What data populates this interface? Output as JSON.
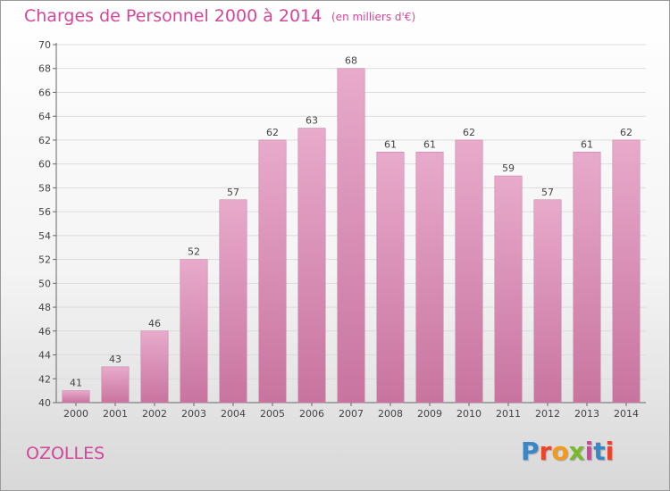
{
  "header": {
    "title": "Charges de Personnel 2000 à 2014",
    "unit": "(en milliers d'€)"
  },
  "footer": {
    "commune": "OZOLLES",
    "logo_text": "Proxiti",
    "logo_colors": [
      "#3a87c8",
      "#e8452c",
      "#f29a1d",
      "#7cb82f",
      "#d2479a",
      "#3a87c8",
      "#e8452c"
    ]
  },
  "chart_data": {
    "type": "bar",
    "title": "Charges de Personnel 2000 à 2014",
    "subtitle": "(en milliers d'€)",
    "xlabel": "",
    "ylabel": "",
    "categories": [
      "2000",
      "2001",
      "2002",
      "2003",
      "2004",
      "2005",
      "2006",
      "2007",
      "2008",
      "2009",
      "2010",
      "2011",
      "2012",
      "2013",
      "2014"
    ],
    "values": [
      41,
      43,
      46,
      52,
      57,
      62,
      63,
      68,
      61,
      61,
      62,
      59,
      57,
      61,
      62
    ],
    "ylim": [
      40,
      70
    ],
    "ytick_step": 2,
    "grid": true,
    "bar_color": "#c8749f",
    "bar_color_light": "#e8aacb"
  }
}
